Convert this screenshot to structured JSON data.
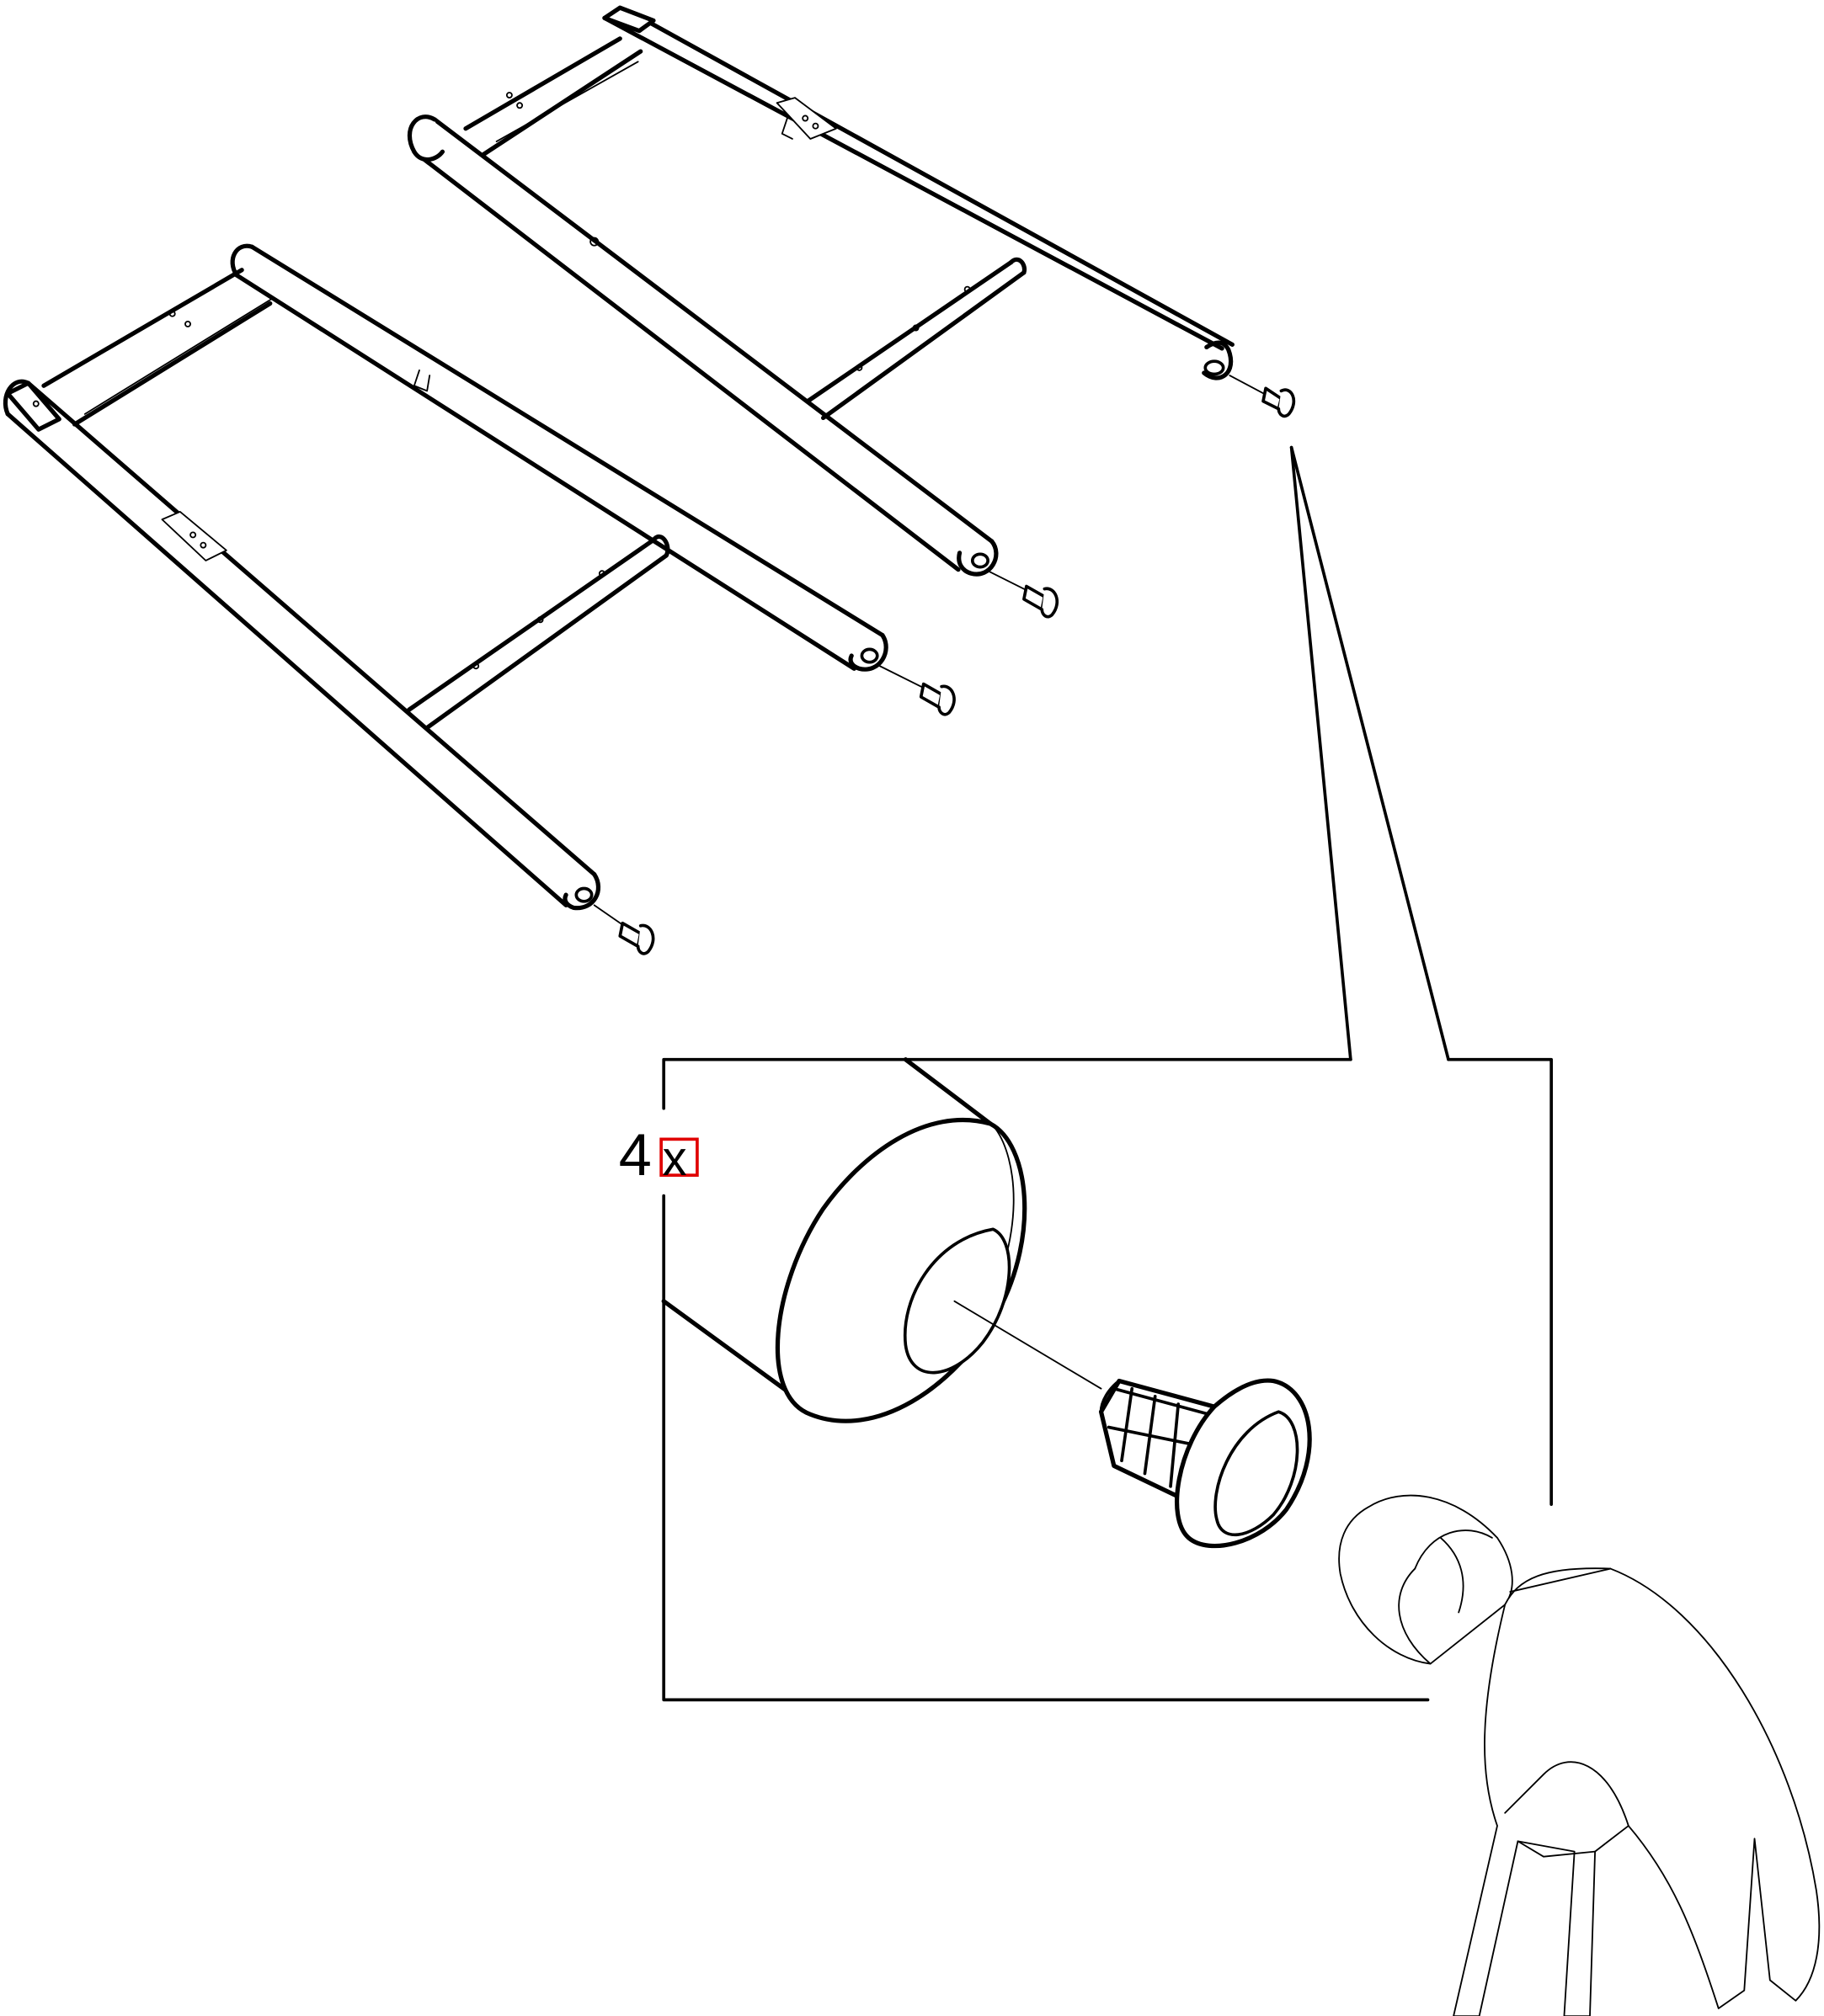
{
  "quantity_label": {
    "count": "4",
    "multiplier": "x"
  },
  "colors": {
    "line": "#000000",
    "background": "#ffffff",
    "highlight_box": "#e00000"
  }
}
